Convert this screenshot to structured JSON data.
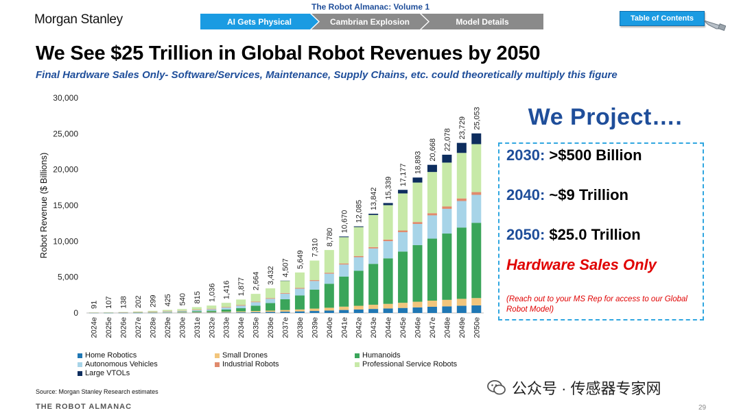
{
  "header": {
    "logo": "Morgan Stanley",
    "almanac_title": "The Robot Almanac: Volume 1",
    "nav": [
      "AI Gets Physical",
      "Cambrian Explosion",
      "Model Details"
    ],
    "toc": "Table of Contents"
  },
  "title": "We See $25 Trillion in Global Robot Revenues by 2050",
  "subtitle": "Final Hardware Sales Only- Software/Services, Maintenance, Supply Chains, etc. could theoretically multiply this figure",
  "projection": {
    "heading": "We Project….",
    "lines": [
      {
        "year": "2030:",
        "value": ">$500 Billion"
      },
      {
        "year": "2040:",
        "value": "~$9 Trillion"
      },
      {
        "year": "2050:",
        "value": "$25.0 Trillion"
      }
    ],
    "hardware": "Hardware Sales Only",
    "note": "(Reach out to your MS Rep for access to our Global Robot Model)"
  },
  "source": "Source: Morgan Stanley Research estimates",
  "footer": "THE ROBOT ALMANAC",
  "page_number": "29",
  "watermark": "公众号 · 传感器专家网",
  "colors": {
    "accent_blue": "#1a9be2",
    "title_blue": "#1f4e9a",
    "red": "#e00000"
  },
  "chart_data": {
    "type": "bar",
    "stacked": true,
    "ylabel": "Robot Revenue ($ Billions)",
    "ylim": [
      0,
      30000
    ],
    "yticks": [
      0,
      5000,
      10000,
      15000,
      20000,
      25000,
      30000
    ],
    "ytick_labels": [
      "0",
      "5,000",
      "10,000",
      "15,000",
      "20,000",
      "25,000",
      "30,000"
    ],
    "legend_position": "bottom",
    "categories": [
      "2024e",
      "2025e",
      "2026e",
      "2027e",
      "2028e",
      "2029e",
      "2030e",
      "2031e",
      "2032e",
      "2033e",
      "2034e",
      "2035e",
      "2036e",
      "2037e",
      "2038e",
      "2039e",
      "2040e",
      "2041e",
      "2042e",
      "2043e",
      "2044e",
      "2045e",
      "2046e",
      "2047e",
      "2048e",
      "2049e",
      "2050e"
    ],
    "totals": [
      91,
      107,
      138,
      202,
      299,
      425,
      540,
      815,
      1036,
      1416,
      1877,
      2664,
      3432,
      4507,
      5649,
      7310,
      8780,
      10670,
      12085,
      13842,
      15339,
      17177,
      18893,
      20668,
      22078,
      23729,
      25053
    ],
    "total_labels": [
      "91",
      "107",
      "138",
      "202",
      "299",
      "425",
      "540",
      "815",
      "1,036",
      "1,416",
      "1,877",
      "2,664",
      "3,432",
      "4,507",
      "5,649",
      "7,310",
      "8,780",
      "10,670",
      "12,085",
      "13,842",
      "15,339",
      "17,177",
      "18,893",
      "20,668",
      "22,078",
      "23,729",
      "25,053"
    ],
    "series": [
      {
        "name": "Home Robotics",
        "color": "#1f77b4",
        "values": [
          5,
          6,
          8,
          12,
          18,
          25,
          30,
          40,
          50,
          65,
          85,
          110,
          140,
          180,
          220,
          280,
          340,
          420,
          480,
          560,
          620,
          700,
          780,
          860,
          920,
          1000,
          1060
        ]
      },
      {
        "name": "Small Drones",
        "color": "#f2c57c",
        "values": [
          20,
          22,
          25,
          30,
          40,
          50,
          60,
          80,
          90,
          110,
          130,
          160,
          190,
          230,
          270,
          330,
          390,
          460,
          520,
          590,
          650,
          720,
          790,
          860,
          910,
          970,
          1020
        ]
      },
      {
        "name": "Humanoids",
        "color": "#3aa55a",
        "values": [
          0,
          1,
          3,
          10,
          20,
          40,
          60,
          120,
          180,
          300,
          450,
          750,
          1050,
          1500,
          1950,
          2650,
          3350,
          4200,
          4900,
          5700,
          6350,
          7150,
          7900,
          8650,
          9250,
          9950,
          10500
        ]
      },
      {
        "name": "Autonomous Vehicles",
        "color": "#a7d4e8",
        "values": [
          10,
          15,
          20,
          30,
          50,
          80,
          100,
          150,
          200,
          280,
          350,
          480,
          600,
          780,
          950,
          1200,
          1400,
          1680,
          1880,
          2150,
          2400,
          2700,
          2950,
          3250,
          3450,
          3700,
          3900
        ]
      },
      {
        "name": "Industrial Robots",
        "color": "#e08a6c",
        "values": [
          40,
          42,
          45,
          50,
          55,
          60,
          65,
          70,
          75,
          80,
          85,
          90,
          95,
          100,
          110,
          120,
          130,
          150,
          170,
          190,
          210,
          240,
          270,
          300,
          330,
          360,
          380
        ]
      },
      {
        "name": "Professional Service Robots",
        "color": "#c7e9a8",
        "values": [
          16,
          21,
          37,
          70,
          116,
          170,
          225,
          355,
          441,
          581,
          777,
          1074,
          1357,
          1697,
          2149,
          2730,
          3170,
          3660,
          4035,
          4482,
          4809,
          5167,
          5503,
          5748,
          6118,
          6349,
          6693
        ]
      },
      {
        "name": "Large VTOLs",
        "color": "#0d2d5e",
        "values": [
          0,
          0,
          0,
          0,
          0,
          0,
          0,
          0,
          0,
          0,
          0,
          0,
          0,
          20,
          0,
          0,
          0,
          100,
          100,
          170,
          300,
          500,
          700,
          1000,
          1100,
          1400,
          1500
        ]
      }
    ]
  }
}
